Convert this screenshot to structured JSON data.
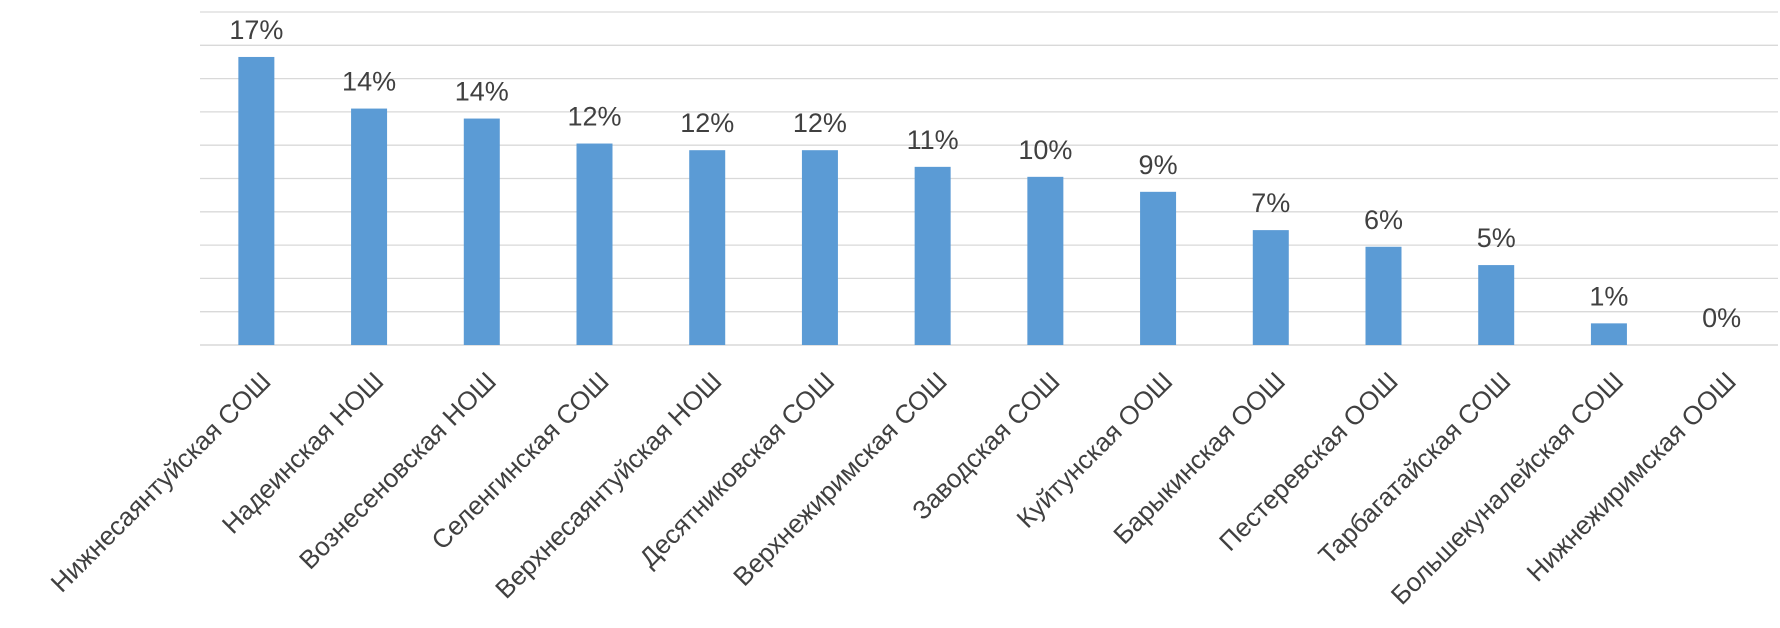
{
  "chart_data": {
    "type": "bar",
    "title": "",
    "xlabel": "",
    "ylabel": "",
    "categories": [
      "Нижнесаянтуйская СОШ",
      "Надеинская НОШ",
      "Вознесеновская НОШ",
      "Селенгинская СОШ",
      "Верхнесаянтуйская НОШ",
      "Десятниковская СОШ",
      "Верхнежиримская СОШ",
      "Заводская СОШ",
      "Куйтунская ООШ",
      "Барыкинская ООШ",
      "Пестеревская ООШ",
      "Тарбагатайская СОШ",
      "Большекуналейская СОШ",
      "Нижнежиримская ООШ"
    ],
    "values": [
      17.3,
      14.2,
      13.6,
      12.1,
      11.7,
      11.7,
      10.7,
      10.1,
      9.2,
      6.9,
      5.9,
      4.8,
      1.3,
      0
    ],
    "data_labels": [
      "17%",
      "14%",
      "14%",
      "12%",
      "12%",
      "12%",
      "11%",
      "10%",
      "9%",
      "7%",
      "6%",
      "5%",
      "1%",
      "0%"
    ],
    "ylim": [
      0,
      20
    ],
    "grid_step": 2,
    "grid": true,
    "legend": "none",
    "bar_color": "#5b9bd5",
    "gridline_color": "#d9d9d9",
    "text_color": "#404040"
  }
}
